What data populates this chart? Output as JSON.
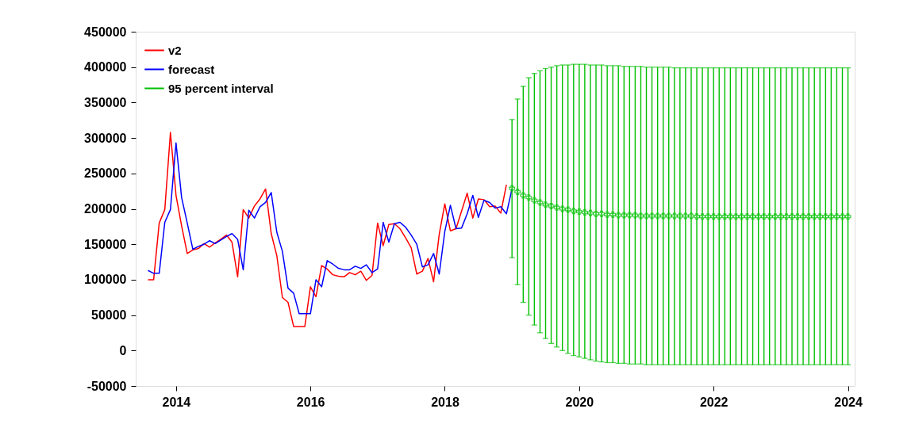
{
  "chart_data": {
    "type": "line",
    "xlim": [
      2013.4,
      2024.1
    ],
    "xticks": [
      2014,
      2016,
      2018,
      2020,
      2022,
      2024
    ],
    "ylim": [
      -50000,
      450000
    ],
    "yticks": [
      -50000,
      0,
      50000,
      100000,
      150000,
      200000,
      250000,
      300000,
      350000,
      400000,
      450000
    ],
    "legend": "top left",
    "line_style": "solid",
    "series": [
      {
        "name": "v2",
        "color": "#ff0000",
        "x": [
          2013.583,
          2013.667,
          2013.75,
          2013.833,
          2013.917,
          2014,
          2014.083,
          2014.167,
          2014.25,
          2014.333,
          2014.417,
          2014.5,
          2014.583,
          2014.667,
          2014.75,
          2014.833,
          2014.917,
          2015,
          2015.083,
          2015.167,
          2015.25,
          2015.333,
          2015.417,
          2015.5,
          2015.583,
          2015.667,
          2015.75,
          2015.833,
          2015.917,
          2016,
          2016.083,
          2016.167,
          2016.25,
          2016.333,
          2016.417,
          2016.5,
          2016.583,
          2016.667,
          2016.75,
          2016.833,
          2016.917,
          2017,
          2017.083,
          2017.167,
          2017.25,
          2017.333,
          2017.417,
          2017.5,
          2017.583,
          2017.667,
          2017.75,
          2017.833,
          2017.917,
          2018,
          2018.083,
          2018.167,
          2018.25,
          2018.333,
          2018.417,
          2018.5,
          2018.583,
          2018.667,
          2018.75,
          2018.833,
          2018.917
        ],
        "values": [
          100000,
          100000,
          180000,
          199000,
          308000,
          219000,
          176000,
          137000,
          142000,
          144000,
          151000,
          146000,
          152000,
          157000,
          163000,
          153000,
          104000,
          199000,
          187000,
          204000,
          214000,
          228000,
          165000,
          134000,
          75000,
          68000,
          34000,
          34000,
          34000,
          90000,
          76000,
          120000,
          115000,
          107000,
          105000,
          104000,
          110000,
          107000,
          112000,
          99000,
          106000,
          180000,
          148000,
          178000,
          179000,
          172000,
          159000,
          145000,
          108000,
          112000,
          130000,
          97000,
          164000,
          207000,
          169000,
          172000,
          197000,
          222000,
          187000,
          214000,
          213000,
          203000,
          204000,
          194000,
          234000
        ]
      },
      {
        "name": "forecast",
        "color": "#0000ff",
        "x": [
          2013.583,
          2013.667,
          2013.75,
          2013.833,
          2013.917,
          2014,
          2014.083,
          2014.167,
          2014.25,
          2014.333,
          2014.417,
          2014.5,
          2014.583,
          2014.667,
          2014.75,
          2014.833,
          2014.917,
          2015,
          2015.083,
          2015.167,
          2015.25,
          2015.333,
          2015.417,
          2015.5,
          2015.583,
          2015.667,
          2015.75,
          2015.833,
          2015.917,
          2016,
          2016.083,
          2016.167,
          2016.25,
          2016.333,
          2016.417,
          2016.5,
          2016.583,
          2016.667,
          2016.75,
          2016.833,
          2016.917,
          2017,
          2017.083,
          2017.167,
          2017.25,
          2017.333,
          2017.417,
          2017.5,
          2017.583,
          2017.667,
          2017.75,
          2017.833,
          2017.917,
          2018,
          2018.083,
          2018.167,
          2018.25,
          2018.333,
          2018.417,
          2018.5,
          2018.583,
          2018.667,
          2018.75,
          2018.833,
          2018.917,
          2019
        ],
        "values": [
          113000,
          109000,
          109000,
          181000,
          199000,
          293000,
          216000,
          180000,
          143000,
          147000,
          150000,
          155000,
          151000,
          156000,
          161000,
          165000,
          157000,
          114000,
          198000,
          187000,
          203000,
          209000,
          223000,
          167000,
          140000,
          88000,
          81000,
          52000,
          52000,
          52000,
          100000,
          90000,
          127000,
          122000,
          116000,
          114000,
          114000,
          119000,
          116000,
          121000,
          110000,
          115000,
          181000,
          153000,
          179000,
          181000,
          174000,
          163000,
          150000,
          118000,
          121000,
          137000,
          108000,
          168000,
          205000,
          172000,
          173000,
          193000,
          219000,
          188000,
          212000,
          209000,
          201000,
          203000,
          193000,
          228000
        ]
      },
      {
        "name": "95 percent interval",
        "color": "#00c000",
        "type": "scatter",
        "marker": "cross",
        "x": [
          2019,
          2019.083,
          2019.167,
          2019.25,
          2019.333,
          2019.417,
          2019.5,
          2019.583,
          2019.667,
          2019.75,
          2019.833,
          2019.917,
          2020,
          2020.083,
          2020.167,
          2020.25,
          2020.333,
          2020.417,
          2020.5,
          2020.583,
          2020.667,
          2020.75,
          2020.833,
          2020.917,
          2021,
          2021.083,
          2021.167,
          2021.25,
          2021.333,
          2021.417,
          2021.5,
          2021.583,
          2021.667,
          2021.75,
          2021.833,
          2021.917,
          2022,
          2022.083,
          2022.167,
          2022.25,
          2022.333,
          2022.417,
          2022.5,
          2022.583,
          2022.667,
          2022.75,
          2022.833,
          2022.917,
          2023,
          2023.083,
          2023.167,
          2023.25,
          2023.333,
          2023.417,
          2023.5,
          2023.583,
          2023.667,
          2023.75,
          2023.833,
          2023.917,
          2024
        ],
        "values": [
          229000,
          224000,
          219000,
          216000,
          212000,
          209000,
          206000,
          204000,
          202000,
          200000,
          199000,
          197000,
          196000,
          195000,
          194000,
          193000,
          193000,
          192000,
          192000,
          191000,
          191000,
          191000,
          191000,
          190000,
          190000,
          190000,
          190000,
          190000,
          190000,
          190000,
          190000,
          190000,
          190000,
          189000,
          189000,
          189000,
          189000,
          189000,
          189000,
          189000,
          189000,
          189000,
          189000,
          189000,
          189000,
          189000,
          189000,
          189000,
          189000,
          189000,
          189000,
          189000,
          189000,
          189000,
          189000,
          189000,
          189000,
          189000,
          189000,
          189000,
          189000
        ],
        "errors": [
          [
            131000,
            326000
          ],
          [
            93000,
            355000
          ],
          [
            68000,
            373000
          ],
          [
            50000,
            385000
          ],
          [
            36000,
            391000
          ],
          [
            25000,
            395000
          ],
          [
            17000,
            398000
          ],
          [
            10000,
            400000
          ],
          [
            5000,
            402000
          ],
          [
            0,
            403000
          ],
          [
            -4000,
            403000
          ],
          [
            -7000,
            404000
          ],
          [
            -9000,
            404000
          ],
          [
            -11000,
            404000
          ],
          [
            -13000,
            403000
          ],
          [
            -15000,
            403000
          ],
          [
            -16000,
            403000
          ],
          [
            -17000,
            402000
          ],
          [
            -17000,
            402000
          ],
          [
            -18000,
            402000
          ],
          [
            -18000,
            401000
          ],
          [
            -19000,
            401000
          ],
          [
            -19000,
            401000
          ],
          [
            -19000,
            401000
          ],
          [
            -20000,
            400000
          ],
          [
            -20000,
            400000
          ],
          [
            -20000,
            400000
          ],
          [
            -20000,
            400000
          ],
          [
            -20000,
            400000
          ],
          [
            -20000,
            399000
          ],
          [
            -20000,
            399000
          ],
          [
            -20000,
            399000
          ],
          [
            -20000,
            399000
          ],
          [
            -20000,
            399000
          ],
          [
            -20000,
            399000
          ],
          [
            -20000,
            399000
          ],
          [
            -20000,
            399000
          ],
          [
            -20000,
            399000
          ],
          [
            -20000,
            399000
          ],
          [
            -20000,
            399000
          ],
          [
            -20000,
            399000
          ],
          [
            -20000,
            399000
          ],
          [
            -20000,
            399000
          ],
          [
            -20000,
            399000
          ],
          [
            -20000,
            399000
          ],
          [
            -20000,
            399000
          ],
          [
            -20000,
            399000
          ],
          [
            -20000,
            399000
          ],
          [
            -20000,
            399000
          ],
          [
            -20000,
            399000
          ],
          [
            -20000,
            399000
          ],
          [
            -20000,
            399000
          ],
          [
            -20000,
            399000
          ],
          [
            -20000,
            399000
          ],
          [
            -20000,
            399000
          ],
          [
            -20000,
            399000
          ],
          [
            -20000,
            399000
          ],
          [
            -20000,
            399000
          ],
          [
            -20000,
            399000
          ],
          [
            -20000,
            399000
          ],
          [
            -20000,
            399000
          ]
        ]
      }
    ]
  }
}
